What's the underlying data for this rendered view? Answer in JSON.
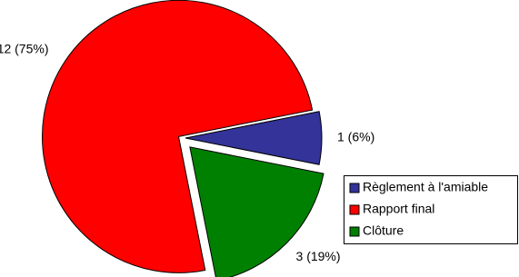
{
  "chart_data": {
    "type": "pie",
    "categories": [
      "Règlement à l'amiable",
      "Rapport final",
      "Clôture"
    ],
    "values": [
      1,
      12,
      3
    ],
    "value_labels": [
      "1 (6%)",
      "12 (75%)",
      "3 (19%)"
    ],
    "colors": [
      "#333399",
      "#ff0000",
      "#008000"
    ],
    "legend": "lower right"
  }
}
